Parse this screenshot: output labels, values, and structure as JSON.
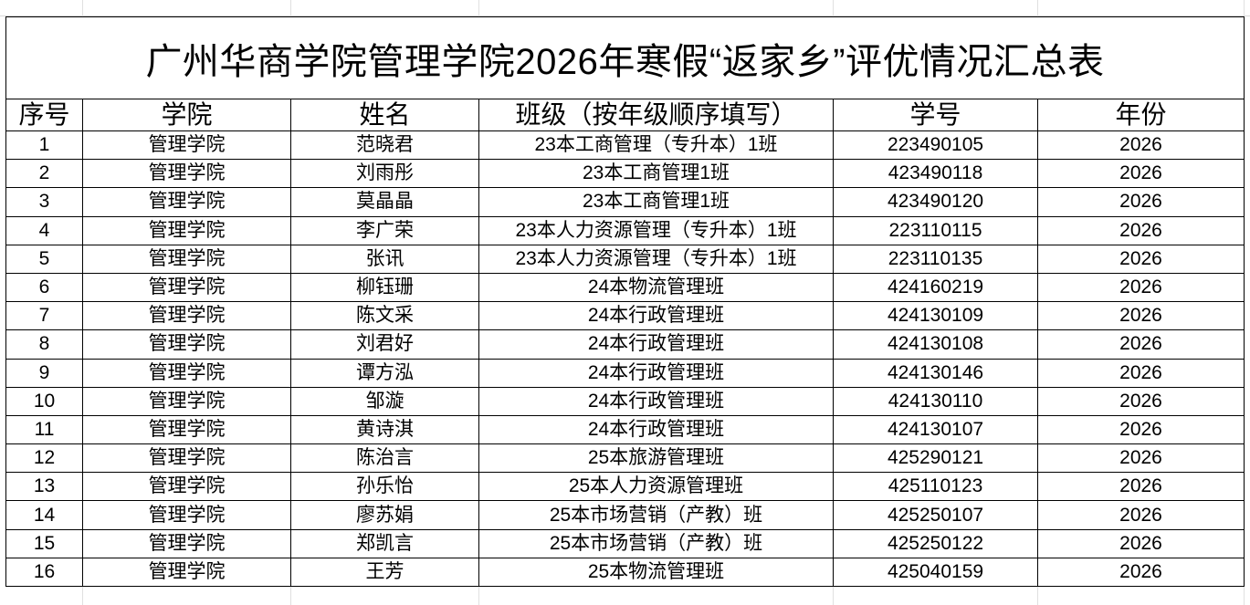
{
  "title": "广州华商学院管理学院2026年寒假“返家乡”评优情况汇总表",
  "columns": [
    "序号",
    "学院",
    "姓名",
    "班级（按年级顺序填写）",
    "学号",
    "年份"
  ],
  "rows": [
    [
      "1",
      "管理学院",
      "范晓君",
      "23本工商管理（专升本）1班",
      "223490105",
      "2026"
    ],
    [
      "2",
      "管理学院",
      "刘雨彤",
      "23本工商管理1班",
      "423490118",
      "2026"
    ],
    [
      "3",
      "管理学院",
      "莫晶晶",
      "23本工商管理1班",
      "423490120",
      "2026"
    ],
    [
      "4",
      "管理学院",
      "李广荣",
      "23本人力资源管理（专升本）1班",
      "223110115",
      "2026"
    ],
    [
      "5",
      "管理学院",
      "张讯",
      "23本人力资源管理（专升本）1班",
      "223110135",
      "2026"
    ],
    [
      "6",
      "管理学院",
      "柳钰珊",
      "24本物流管理班",
      "424160219",
      "2026"
    ],
    [
      "7",
      "管理学院",
      "陈文采",
      "24本行政管理班",
      "424130109",
      "2026"
    ],
    [
      "8",
      "管理学院",
      "刘君好",
      "24本行政管理班",
      "424130108",
      "2026"
    ],
    [
      "9",
      "管理学院",
      "谭方泓",
      "24本行政管理班",
      "424130146",
      "2026"
    ],
    [
      "10",
      "管理学院",
      "邹漩",
      "24本行政管理班",
      "424130110",
      "2026"
    ],
    [
      "11",
      "管理学院",
      "黄诗淇",
      "24本行政管理班",
      "424130107",
      "2026"
    ],
    [
      "12",
      "管理学院",
      "陈治言",
      "25本旅游管理班",
      "425290121",
      "2026"
    ],
    [
      "13",
      "管理学院",
      "孙乐怡",
      "25本人力资源管理班",
      "425110123",
      "2026"
    ],
    [
      "14",
      "管理学院",
      "廖苏娟",
      "25本市场营销（产教）班",
      "425250107",
      "2026"
    ],
    [
      "15",
      "管理学院",
      "郑凯言",
      "25本市场营销（产教）班",
      "425250122",
      "2026"
    ],
    [
      "16",
      "管理学院",
      "王芳",
      "25本物流管理班",
      "425040159",
      "2026"
    ]
  ]
}
